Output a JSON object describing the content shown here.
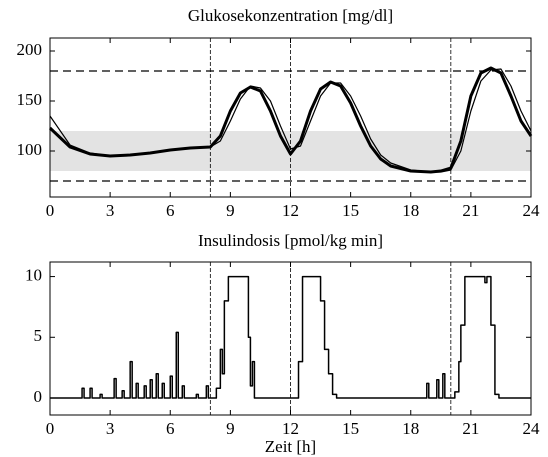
{
  "chart_data": [
    {
      "type": "line",
      "title": "Glukosekonzentration [mg/dl]",
      "x": [
        0,
        1,
        2,
        3,
        4,
        5,
        6,
        7,
        8,
        8.5,
        9,
        9.5,
        10,
        10.5,
        11,
        11.5,
        12,
        12.5,
        13,
        13.5,
        14,
        14.5,
        15,
        15.5,
        16,
        16.5,
        17,
        18,
        19,
        19.5,
        20,
        20.5,
        21,
        21.5,
        22,
        22.5,
        23,
        23.5,
        24
      ],
      "series": [
        {
          "color": "#000000",
          "linewidth": 3,
          "values": [
            123,
            104,
            97,
            95,
            96,
            98,
            101,
            103,
            104,
            115,
            140,
            158,
            164,
            160,
            140,
            115,
            97,
            110,
            140,
            162,
            169,
            165,
            148,
            125,
            105,
            92,
            85,
            80,
            79,
            80,
            83,
            110,
            155,
            178,
            183,
            178,
            155,
            130,
            115
          ]
        },
        {
          "color": "#000000",
          "linewidth": 1.2,
          "values": [
            135,
            106,
            98,
            95,
            96,
            98,
            101,
            103,
            104,
            110,
            130,
            152,
            165,
            163,
            150,
            125,
            102,
            105,
            130,
            155,
            168,
            168,
            155,
            135,
            112,
            96,
            88,
            81,
            79,
            79,
            81,
            100,
            140,
            170,
            181,
            182,
            165,
            140,
            120
          ]
        }
      ],
      "band": [
        80,
        120
      ],
      "band_color": "#e3e3e3",
      "hlines": [
        70,
        180
      ],
      "vlines": [
        8,
        12,
        20
      ],
      "xlim": [
        0,
        24
      ],
      "ylim": [
        54,
        213
      ],
      "xticks": [
        0,
        3,
        6,
        9,
        12,
        15,
        18,
        21,
        24
      ],
      "yticks": [
        100,
        150,
        200
      ]
    },
    {
      "type": "line",
      "title": "Insulindosis [pmol/kg min]",
      "xlabel": "Zeit [h]",
      "drawstyle": "steps-post",
      "x": [
        0,
        1.6,
        1.7,
        2.0,
        2.1,
        2.5,
        2.6,
        3.2,
        3.3,
        3.6,
        3.7,
        4.0,
        4.1,
        4.3,
        4.4,
        4.7,
        4.8,
        5.0,
        5.1,
        5.3,
        5.4,
        5.6,
        5.7,
        6.0,
        6.1,
        6.3,
        6.4,
        6.6,
        6.7,
        7.3,
        7.4,
        7.8,
        7.9,
        8.3,
        8.5,
        8.6,
        8.7,
        8.9,
        9.8,
        9.9,
        10.0,
        10.1,
        10.2,
        12.4,
        12.6,
        13.5,
        13.7,
        13.9,
        14.1,
        14.3,
        18.8,
        18.9,
        19.3,
        19.4,
        19.6,
        19.7,
        20.2,
        20.4,
        20.5,
        20.7,
        21.7,
        21.8,
        22.0,
        22.2,
        22.4,
        24
      ],
      "series": [
        {
          "color": "#000000",
          "linewidth": 1.5,
          "values": [
            0,
            0.8,
            0,
            0.8,
            0,
            0.3,
            0,
            1.6,
            0,
            0.6,
            0,
            3.0,
            0,
            1.2,
            0,
            1.0,
            0,
            1.5,
            0,
            2.0,
            0,
            1.2,
            0,
            1.8,
            0,
            5.4,
            0,
            1.0,
            0,
            0.3,
            0,
            1.0,
            0,
            0.8,
            4,
            2,
            8,
            10,
            10,
            5,
            1,
            3,
            0,
            3,
            10,
            8,
            4,
            2,
            0.3,
            0,
            1.2,
            0,
            1.5,
            0,
            2,
            0,
            0.5,
            3,
            6,
            10,
            9.5,
            10,
            6,
            0.3,
            0,
            0
          ]
        }
      ],
      "vlines": [
        8,
        12,
        20
      ],
      "xlim": [
        0,
        24
      ],
      "ylim": [
        -1.4,
        11.2
      ],
      "xticks": [
        0,
        3,
        6,
        9,
        12,
        15,
        18,
        21,
        24
      ],
      "yticks": [
        0,
        5,
        10
      ]
    }
  ]
}
